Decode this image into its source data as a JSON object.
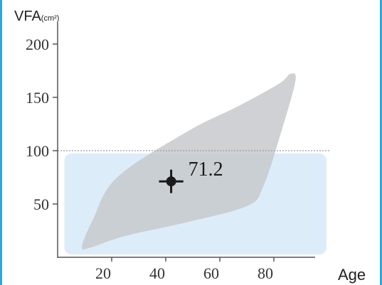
{
  "chart_data": {
    "type": "scatter",
    "ylabel_main": "VFA",
    "ylabel_unit": "(cm²)",
    "xlabel": "Age",
    "xlim": [
      0,
      100
    ],
    "ylim": [
      0,
      215
    ],
    "xticks": [
      20,
      40,
      60,
      80
    ],
    "yticks": [
      50,
      100,
      150,
      200
    ],
    "reference_line": {
      "y": 100
    },
    "normal_band": {
      "y_from": 0,
      "y_to": 100,
      "color": "#dcedf9"
    },
    "distribution_region": {
      "color": "#c7c9cc",
      "outline": [
        [
          9,
          10
        ],
        [
          13,
          35
        ],
        [
          22,
          75
        ],
        [
          48,
          118
        ],
        [
          67,
          142
        ],
        [
          82,
          163
        ],
        [
          86,
          172
        ],
        [
          88,
          166
        ],
        [
          83,
          120
        ],
        [
          76,
          66
        ],
        [
          70,
          48
        ],
        [
          48,
          33
        ],
        [
          25,
          20
        ],
        [
          12,
          9
        ]
      ]
    },
    "point": {
      "x": 42,
      "y": 71.2,
      "label": "71.2",
      "x_err": 4.5,
      "y_err": 11
    }
  },
  "colors": {
    "frame": "#2aa7e0",
    "axis": "#555555",
    "marker": "#1a1a1a"
  }
}
